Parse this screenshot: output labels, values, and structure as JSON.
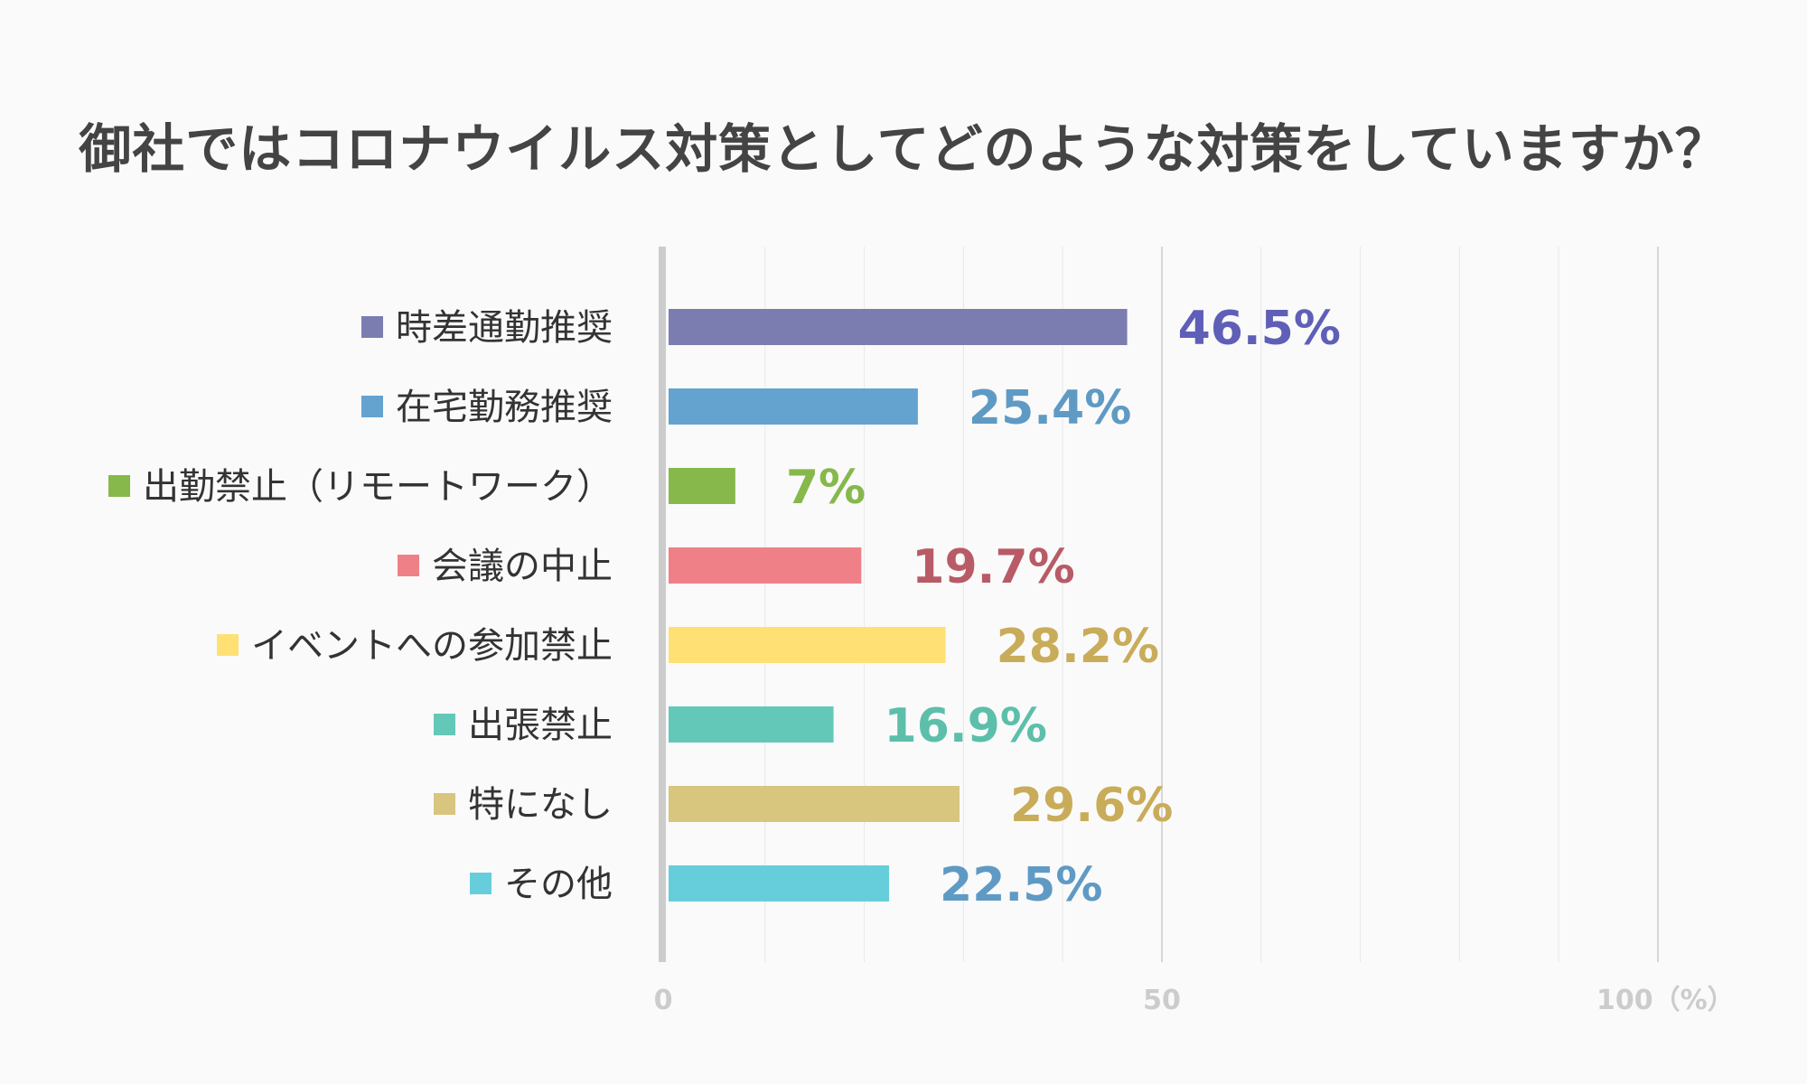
{
  "chart_data": {
    "type": "bar",
    "orientation": "horizontal",
    "title": "御社ではコロナウイルス対策としてどのような対策をしていますか？",
    "categories": [
      "時差通勤推奨",
      "在宅勤務推奨",
      "出勤禁止（リモートワーク）",
      "会議の中止",
      "イベントへの参加禁止",
      "出張禁止",
      "特になし",
      "その他"
    ],
    "values": [
      46.5,
      25.4,
      7,
      19.7,
      28.2,
      16.9,
      29.6,
      22.5
    ],
    "value_labels": [
      "46.5%",
      "25.4%",
      "7%",
      "19.7%",
      "28.2%",
      "16.9%",
      "29.6%",
      "22.5%"
    ],
    "bar_colors": [
      "#7b7db0",
      "#64a3d0",
      "#86b84b",
      "#f08088",
      "#ffe075",
      "#64c8b8",
      "#d8c57e",
      "#66cedb"
    ],
    "label_colors": [
      "#5f5fb8",
      "#5f9ac4",
      "#86b84b",
      "#b85b66",
      "#c9ac5a",
      "#5cbfaa",
      "#c9ac5a",
      "#5f9ac4"
    ],
    "xlim": [
      0,
      100
    ],
    "ticks": [
      {
        "value": 0,
        "label": "0"
      },
      {
        "value": 50,
        "label": "50"
      },
      {
        "value": 100,
        "label": "100（%）"
      }
    ],
    "grid_step": 10,
    "grid": true,
    "legend": "none"
  }
}
